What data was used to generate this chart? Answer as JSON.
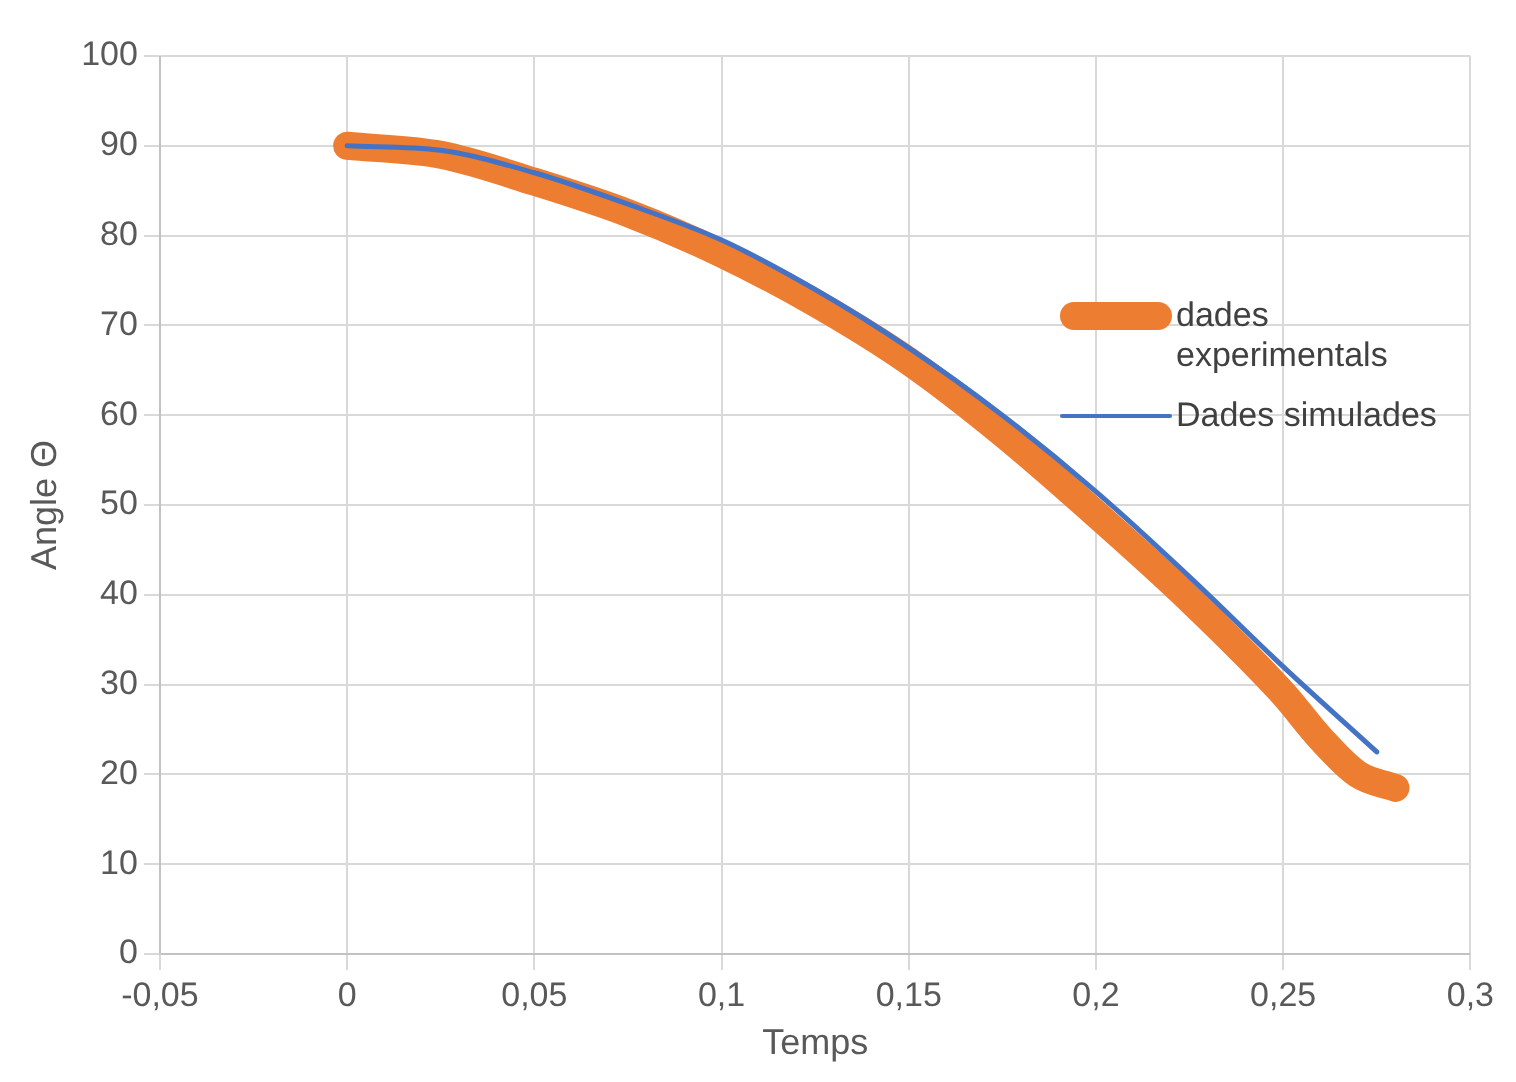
{
  "chart_data": {
    "type": "line",
    "xlabel": "Temps",
    "ylabel": "Angle Θ",
    "xlim": [
      -0.05,
      0.3
    ],
    "xticks": [
      {
        "value": -0.05,
        "label": "-0,05"
      },
      0,
      {
        "value": 0.05,
        "label": "0,05"
      },
      {
        "value": 0.1,
        "label": "0,1"
      },
      {
        "value": 0.15,
        "label": "0,15"
      },
      {
        "value": 0.2,
        "label": "0,2"
      },
      {
        "value": 0.25,
        "label": "0,25"
      },
      {
        "value": 0.3,
        "label": "0,3"
      }
    ],
    "ylim": [
      0,
      100
    ],
    "yticks": [
      0,
      10,
      20,
      30,
      40,
      50,
      60,
      70,
      80,
      90,
      100
    ],
    "grid": true,
    "legend": "right",
    "marker": "none",
    "line_style": "solid",
    "series": [
      {
        "name": "dades experimentals",
        "color": "#ed7d31",
        "x": [
          0,
          0.025,
          0.05,
          0.075,
          0.1,
          0.125,
          0.15,
          0.175,
          0.2,
          0.225,
          0.25,
          0.26,
          0.27,
          0.28
        ],
        "values": [
          90,
          89,
          86,
          82.5,
          78,
          72.5,
          66,
          58,
          49,
          39.5,
          29,
          24,
          20,
          18.5
        ]
      },
      {
        "name": "Dades simulades",
        "color": "#4472c4",
        "x": [
          0,
          0.025,
          0.05,
          0.075,
          0.1,
          0.125,
          0.15,
          0.175,
          0.2,
          0.225,
          0.25,
          0.275
        ],
        "values": [
          90,
          89.5,
          87,
          83.5,
          79.5,
          74,
          67.5,
          60,
          51.5,
          42,
          32,
          22.5
        ]
      }
    ]
  }
}
